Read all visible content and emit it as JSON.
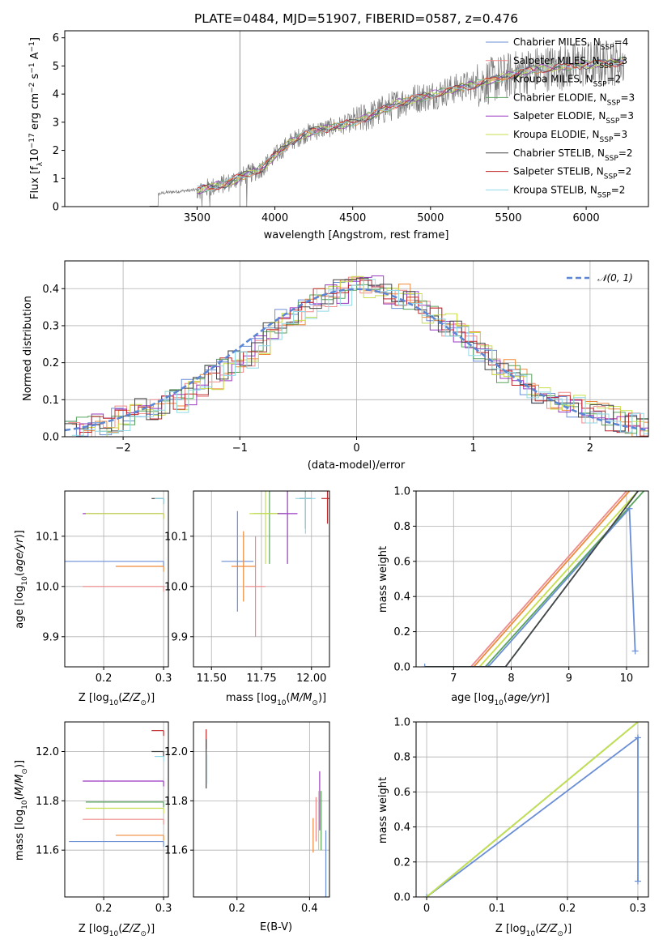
{
  "title": "PLATE=0484, MJD=51907, FIBERID=0587, z=0.476",
  "colors": {
    "chabrier_miles": "#6a8ed6",
    "salpeter_miles": "#f08a8a",
    "kroupa_miles": "#ef8a3a",
    "chabrier_elodie": "#58a35c",
    "salpeter_elodie": "#9a38c0",
    "kroupa_elodie": "#c6df4a",
    "chabrier_stelib": "#444444",
    "salpeter_stelib": "#c0282a",
    "kroupa_stelib": "#8ed9e8",
    "data": "#7a7a7a",
    "gauss": "#5b86d6",
    "grid": "#b0b0b0"
  },
  "legend": {
    "spectrum": [
      {
        "label": "Chabrier MILES, N",
        "sub": "SSP",
        "tail": "=4",
        "key": "chabrier_miles"
      },
      {
        "label": "Salpeter MILES, N",
        "sub": "SSP",
        "tail": "=3",
        "key": "salpeter_miles"
      },
      {
        "label": "Kroupa MILES, N",
        "sub": "SSP",
        "tail": "=2",
        "key": "kroupa_miles"
      },
      {
        "label": "Chabrier ELODIE, N",
        "sub": "SSP",
        "tail": "=3",
        "key": "chabrier_elodie"
      },
      {
        "label": "Salpeter ELODIE, N",
        "sub": "SSP",
        "tail": "=3",
        "key": "salpeter_elodie"
      },
      {
        "label": "Kroupa ELODIE, N",
        "sub": "SSP",
        "tail": "=3",
        "key": "kroupa_elodie"
      },
      {
        "label": "Chabrier STELIB, N",
        "sub": "SSP",
        "tail": "=2",
        "key": "chabrier_stelib"
      },
      {
        "label": "Salpeter STELIB, N",
        "sub": "SSP",
        "tail": "=2",
        "key": "salpeter_stelib"
      },
      {
        "label": "Kroupa STELIB, N",
        "sub": "SSP",
        "tail": "=2",
        "key": "kroupa_stelib"
      }
    ],
    "hist": "𝒩(0, 1)"
  },
  "chart_data": [
    {
      "type": "line",
      "panel": "spectrum",
      "xlabel": "wavelength [Angstrom, rest frame]",
      "ylabel": "Flux [f_λ 10^-17 erg cm^-2 s^-1 A^-1]",
      "xlim": [
        2650,
        6400
      ],
      "ylim": [
        0,
        6.25
      ],
      "xticks": [
        3500,
        4000,
        4500,
        5000,
        5500,
        6000
      ],
      "yticks": [
        0,
        1,
        2,
        3,
        4,
        5,
        6
      ],
      "model_continuum": {
        "x": [
          3190,
          3250,
          3300,
          3400,
          3500,
          3600,
          3700,
          3800,
          3900,
          4000,
          4100,
          4200,
          4300,
          4400,
          4500,
          4600,
          4700,
          4800,
          4900,
          5000,
          5100,
          5200,
          5300,
          5400,
          5500,
          5600,
          5700,
          5800,
          5900,
          6000,
          6100,
          6250
        ],
        "y": [
          0.1,
          0.45,
          0.5,
          0.55,
          0.6,
          0.7,
          0.85,
          1.1,
          1.3,
          1.8,
          2.3,
          2.6,
          2.75,
          2.85,
          3.0,
          3.2,
          3.45,
          3.7,
          3.85,
          3.95,
          4.1,
          4.25,
          4.35,
          4.5,
          4.65,
          4.8,
          4.9,
          4.95,
          5.0,
          5.05,
          5.1,
          5.15
        ]
      }
    },
    {
      "type": "bar",
      "panel": "residual-histogram",
      "xlabel": "(data-model)/error",
      "ylabel": "Normed distribution",
      "xlim": [
        -2.5,
        2.5
      ],
      "ylim": [
        0,
        0.475
      ],
      "xticks": [
        -2,
        -1,
        0,
        1,
        2
      ],
      "yticks": [
        0.0,
        0.1,
        0.2,
        0.3,
        0.4
      ],
      "bin_edges_start": -2.5,
      "bin_width": 0.1,
      "histogram": [
        0.01,
        0.02,
        0.03,
        0.04,
        0.05,
        0.06,
        0.07,
        0.08,
        0.09,
        0.1,
        0.12,
        0.14,
        0.16,
        0.18,
        0.2,
        0.22,
        0.25,
        0.28,
        0.31,
        0.33,
        0.35,
        0.37,
        0.38,
        0.39,
        0.4,
        0.41,
        0.4,
        0.39,
        0.38,
        0.36,
        0.34,
        0.32,
        0.3,
        0.28,
        0.25,
        0.22,
        0.2,
        0.18,
        0.16,
        0.14,
        0.12,
        0.1,
        0.09,
        0.08,
        0.07,
        0.06,
        0.05,
        0.04,
        0.03,
        0.025
      ],
      "gaussian": "N(0,1)"
    },
    {
      "type": "scatter",
      "panel": "age-vs-Z",
      "xlabel": "Z [log10(Z/Z_sun)]",
      "ylabel": "age [log10(age/yr)]",
      "xlim": [
        0.135,
        0.308
      ],
      "ylim": [
        9.84,
        10.19
      ],
      "xticks": [
        0.2,
        0.3
      ],
      "yticks": [
        9.9,
        10.0,
        10.1
      ],
      "points": [
        {
          "key": "chabrier_miles",
          "x": 0.3,
          "y": 10.05,
          "xerr_lo": 0.165
        },
        {
          "key": "kroupa_miles",
          "x": 0.3,
          "y": 10.04,
          "xerr_lo": 0.08
        },
        {
          "key": "salpeter_miles",
          "x": 0.3,
          "y": 10.0,
          "xerr_lo": 0.135
        },
        {
          "key": "salpeter_elodie",
          "x": 0.3,
          "y": 10.145,
          "xerr_lo": 0.135
        },
        {
          "key": "kroupa_elodie",
          "x": 0.3,
          "y": 10.145,
          "xerr_lo": 0.13
        },
        {
          "key": "chabrier_stelib",
          "x": 0.3,
          "y": 10.175,
          "xerr_lo": 0.02
        },
        {
          "key": "kroupa_stelib",
          "x": 0.3,
          "y": 10.175,
          "xerr_lo": 0.015
        }
      ]
    },
    {
      "type": "scatter",
      "panel": "age-vs-mass",
      "xlabel": "mass [log10(M/M_sun)]",
      "ylabel": "",
      "xlim": [
        11.41,
        12.09
      ],
      "ylim": [
        9.84,
        10.19
      ],
      "xticks": [
        11.5,
        11.75,
        12.0
      ],
      "yticks": [
        9.9,
        10.0,
        10.1
      ],
      "points": [
        {
          "key": "chabrier_miles",
          "x": 11.63,
          "y": 10.05,
          "xerr": 0.08,
          "yerr": 0.1
        },
        {
          "key": "kroupa_miles",
          "x": 11.66,
          "y": 10.04,
          "xerr": 0.06,
          "yerr": 0.07
        },
        {
          "key": "salpeter_miles",
          "x": 11.72,
          "y": 10.0,
          "xerr": 0.05,
          "yerr": 0.1
        },
        {
          "key": "chabrier_elodie",
          "x": 11.79,
          "y": 10.145,
          "xerr": 0.08,
          "yerr": 0.1
        },
        {
          "key": "kroupa_elodie",
          "x": 11.77,
          "y": 10.145,
          "xerr": 0.08,
          "yerr": 0.1
        },
        {
          "key": "salpeter_elodie",
          "x": 11.88,
          "y": 10.145,
          "xerr": 0.05,
          "yerr": 0.1
        },
        {
          "key": "chabrier_stelib",
          "x": 11.97,
          "y": 10.175,
          "xerr": 0.03,
          "yerr": 0.06
        },
        {
          "key": "salpeter_stelib",
          "x": 12.08,
          "y": 10.175,
          "xerr": 0.03,
          "yerr": 0.05
        },
        {
          "key": "kroupa_stelib",
          "x": 11.97,
          "y": 10.175,
          "xerr": 0.05,
          "yerr": 0.07
        }
      ]
    },
    {
      "type": "line",
      "panel": "cumulative-mass-weight-vs-age",
      "xlabel": "age [log10(age/yr)]",
      "ylabel": "mass weight",
      "xlim": [
        6.35,
        10.38
      ],
      "ylim": [
        0,
        1
      ],
      "xticks": [
        7,
        8,
        9,
        10
      ],
      "yticks": [
        0.0,
        0.2,
        0.4,
        0.6,
        0.8,
        1.0
      ],
      "series": [
        {
          "key": "salpeter_miles",
          "x": [
            6.5,
            7.3,
            10.0
          ],
          "y": [
            0,
            0,
            1.0
          ]
        },
        {
          "key": "kroupa_miles",
          "x": [
            6.5,
            7.35,
            10.05
          ],
          "y": [
            0,
            0,
            1.0
          ]
        },
        {
          "key": "kroupa_elodie",
          "x": [
            6.5,
            7.45,
            10.2
          ],
          "y": [
            0,
            0,
            1.0
          ]
        },
        {
          "key": "chabrier_elodie",
          "x": [
            6.5,
            7.55,
            10.3
          ],
          "y": [
            0,
            0,
            1.0
          ]
        },
        {
          "key": "chabrier_miles",
          "x": [
            6.5,
            7.6,
            10.05,
            10.15
          ],
          "y": [
            0,
            0,
            0.9,
            0.09
          ]
        },
        {
          "key": "kroupa_stelib",
          "x": [
            6.5,
            7.9,
            10.2
          ],
          "y": [
            0,
            0,
            1.0
          ]
        },
        {
          "key": "chabrier_stelib",
          "x": [
            6.5,
            7.9,
            10.2
          ],
          "y": [
            0,
            0,
            1.0
          ]
        }
      ]
    },
    {
      "type": "scatter",
      "panel": "mass-vs-Z",
      "xlabel": "Z [log10(Z/Z_sun)]",
      "ylabel": "mass [log10(M/M_sun)]",
      "xlim": [
        0.135,
        0.308
      ],
      "ylim": [
        11.41,
        12.12
      ],
      "xticks": [
        0.2,
        0.3
      ],
      "yticks": [
        11.6,
        11.8,
        12.0
      ],
      "points": [
        {
          "key": "chabrier_miles",
          "x": 0.3,
          "y": 11.635,
          "xerr_lo": 0.158
        },
        {
          "key": "kroupa_miles",
          "x": 0.3,
          "y": 11.66,
          "xerr_lo": 0.08
        },
        {
          "key": "salpeter_miles",
          "x": 0.3,
          "y": 11.725,
          "xerr_lo": 0.135
        },
        {
          "key": "kroupa_elodie",
          "x": 0.3,
          "y": 11.77,
          "xerr_lo": 0.13
        },
        {
          "key": "chabrier_elodie",
          "x": 0.3,
          "y": 11.795,
          "xerr_lo": 0.13
        },
        {
          "key": "salpeter_elodie",
          "x": 0.3,
          "y": 11.88,
          "xerr_lo": 0.135
        },
        {
          "key": "chabrier_stelib",
          "x": 0.3,
          "y": 12.0,
          "xerr_lo": 0.02
        },
        {
          "key": "kroupa_stelib",
          "x": 0.3,
          "y": 11.98,
          "xerr_lo": 0.015
        },
        {
          "key": "salpeter_stelib",
          "x": 0.3,
          "y": 12.085,
          "xerr_lo": 0.02
        }
      ]
    },
    {
      "type": "scatter",
      "panel": "mass-vs-EBV",
      "xlabel": "E(B-V)",
      "ylabel": "",
      "xlim": [
        0.08,
        0.455
      ],
      "ylim": [
        11.41,
        12.12
      ],
      "xticks": [
        0.2,
        0.4
      ],
      "yticks": [
        11.6,
        11.8,
        12.0
      ],
      "points": [
        {
          "key": "salpeter_stelib",
          "x": 0.115,
          "y": 12.05,
          "yerr": 0.04
        },
        {
          "key": "chabrier_stelib",
          "x": 0.115,
          "y": 11.95,
          "yerr": 0.1
        },
        {
          "key": "kroupa_stelib",
          "x": 0.117,
          "y": 11.93,
          "yerr": 0.06
        },
        {
          "key": "kroupa_miles",
          "x": 0.41,
          "y": 11.66,
          "yerr": 0.07
        },
        {
          "key": "salpeter_miles",
          "x": 0.418,
          "y": 11.725,
          "yerr": 0.09
        },
        {
          "key": "salpeter_elodie",
          "x": 0.428,
          "y": 11.8,
          "yerr": 0.12
        },
        {
          "key": "kroupa_elodie",
          "x": 0.425,
          "y": 11.72,
          "yerr": 0.12
        },
        {
          "key": "chabrier_elodie",
          "x": 0.432,
          "y": 11.72,
          "yerr": 0.12
        },
        {
          "key": "chabrier_miles",
          "x": 0.445,
          "y": 11.53,
          "yerr": 0.15
        }
      ]
    },
    {
      "type": "line",
      "panel": "cumulative-mass-weight-vs-Z",
      "xlabel": "Z [log10(Z/Z_sun)]",
      "ylabel": "mass weight",
      "xlim": [
        -0.015,
        0.315
      ],
      "ylim": [
        0,
        1
      ],
      "xticks": [
        0.0,
        0.1,
        0.2,
        0.3
      ],
      "yticks": [
        0.0,
        0.2,
        0.4,
        0.6,
        0.8,
        1.0
      ],
      "series": [
        {
          "key": "chabrier_miles",
          "x": [
            0,
            0.3,
            0.3
          ],
          "y": [
            0,
            0.91,
            0.09
          ]
        },
        {
          "key": "chabrier_elodie",
          "x": [
            0,
            0.3
          ],
          "y": [
            0,
            1.0
          ]
        },
        {
          "key": "kroupa_stelib",
          "x": [
            0,
            0.3
          ],
          "y": [
            0,
            1.0
          ]
        },
        {
          "key": "kroupa_elodie",
          "x": [
            0,
            0.3
          ],
          "y": [
            0,
            1.0
          ]
        }
      ]
    }
  ],
  "labels": {
    "spec_x": "wavelength [Angstrom, rest frame]",
    "hist_x": "(data-model)/error",
    "hist_y": "Normed distribution",
    "massweight": "mass weight",
    "age_x": "age",
    "e_bv": "E(B-V)"
  }
}
